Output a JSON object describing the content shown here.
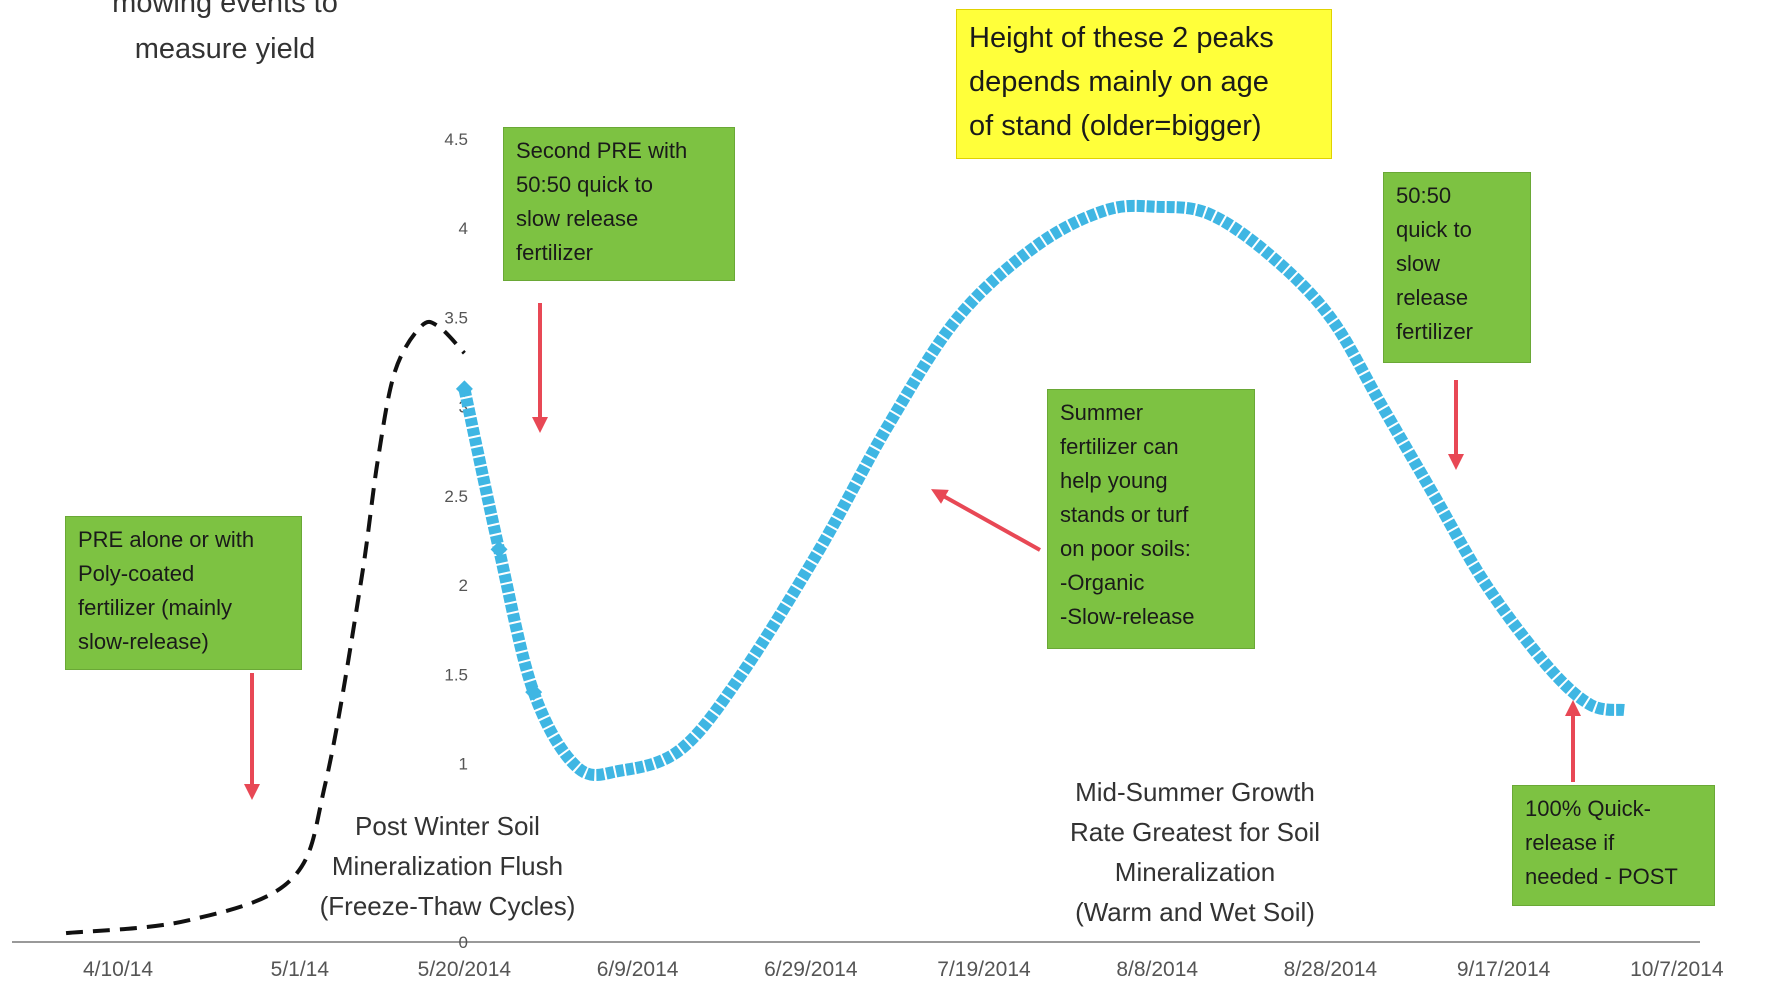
{
  "colors": {
    "curve": "#3fb6e3",
    "dashed": "#111111",
    "arrow": "#e84855",
    "green_box": "#7dc242",
    "yellow_box": "#ffff3a",
    "axis": "#999999"
  },
  "top_text": "mowing events to\nmeasure yield",
  "boxes": {
    "pre_alone": "PRE alone or with\nPoly-coated\nfertilizer (mainly\nslow-release)",
    "second_pre": "Second PRE with\n50:50 quick to\nslow release\nfertilizer",
    "height_peaks": "Height of these 2 peaks\ndepends mainly on age\nof stand (older=bigger)",
    "summer_fert": "Summer\nfertilizer can\nhelp young\nstands or turf\non poor soils:\n-Organic\n-Slow-release",
    "fall_5050": "50:50\nquick to\nslow\nrelease\nfertilizer",
    "quick_release": "100% Quick-\nrelease if\nneeded - POST"
  },
  "notes": {
    "post_winter": "Post Winter Soil\nMineralization Flush\n(Freeze-Thaw Cycles)",
    "mid_summer": "Mid-Summer Growth\nRate Greatest for Soil\nMineralization\n(Warm and Wet Soil)"
  },
  "chart_data": {
    "type": "line",
    "title": "",
    "xlabel": "",
    "ylabel": "",
    "ylim": [
      0,
      4.5
    ],
    "grid": false,
    "y_ticks": [
      "0",
      "1",
      "1.5",
      "2",
      "2.5",
      "3",
      "3.5",
      "4",
      "4.5"
    ],
    "x_ticks": [
      "4/10/14",
      "5/1/14",
      "5/20/2014",
      "6/9/2014",
      "6/29/2014",
      "7/19/2014",
      "8/8/2014",
      "8/28/2014",
      "9/17/2014",
      "10/7/2014"
    ],
    "x_tick_dates": [
      "2014-04-10",
      "2014-05-01",
      "2014-05-20",
      "2014-06-09",
      "2014-06-29",
      "2014-07-19",
      "2014-08-08",
      "2014-08-28",
      "2014-09-17",
      "2014-10-07"
    ],
    "series": [
      {
        "style": "dashed",
        "x": [
          "2014-04-04",
          "2014-04-18",
          "2014-04-30",
          "2014-05-04",
          "2014-05-08",
          "2014-05-10",
          "2014-05-12",
          "2014-05-15",
          "2014-05-17",
          "2014-05-20"
        ],
        "values": [
          0.05,
          0.12,
          0.35,
          0.9,
          2.0,
          2.7,
          3.2,
          3.45,
          3.45,
          3.3
        ]
      },
      {
        "style": "dotted",
        "x": [
          "2014-05-20",
          "2014-05-24",
          "2014-05-28",
          "2014-06-02",
          "2014-06-07",
          "2014-06-14",
          "2014-06-21",
          "2014-06-30",
          "2014-07-08",
          "2014-07-16",
          "2014-07-25",
          "2014-08-02",
          "2014-08-08",
          "2014-08-14",
          "2014-08-21",
          "2014-08-28",
          "2014-09-03",
          "2014-09-09",
          "2014-09-15",
          "2014-09-22",
          "2014-09-27",
          "2014-10-01"
        ],
        "values": [
          3.1,
          2.2,
          1.4,
          0.98,
          0.96,
          1.08,
          1.5,
          2.2,
          2.9,
          3.5,
          3.9,
          4.1,
          4.12,
          4.08,
          3.85,
          3.5,
          3.0,
          2.5,
          2.0,
          1.55,
          1.33,
          1.3
        ]
      }
    ]
  }
}
